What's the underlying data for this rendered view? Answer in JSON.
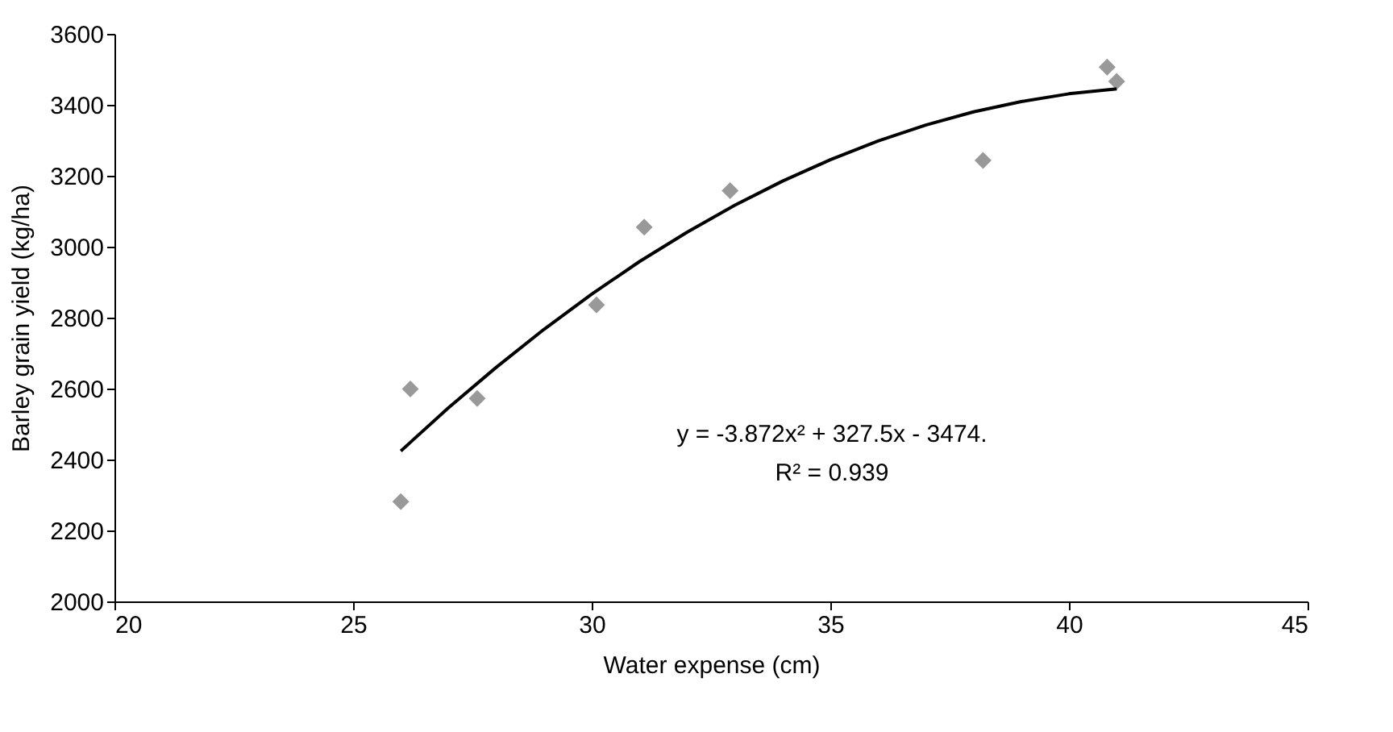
{
  "chart_data": {
    "type": "scatter",
    "xlabel": "Water expense (cm)",
    "ylabel": "Barley grain yield (kg/ha)",
    "xlim": [
      20,
      45
    ],
    "xticks": [
      20,
      25,
      30,
      35,
      40,
      45
    ],
    "ylim": [
      2000,
      3600
    ],
    "yticks": [
      2000,
      2200,
      2400,
      2600,
      2800,
      3000,
      3200,
      3400,
      3600
    ],
    "grid": false,
    "series": [
      {
        "color": "#999999",
        "marker": "diamond",
        "x": [
          26.0,
          26.2,
          27.6,
          30.1,
          31.1,
          32.9,
          38.2,
          40.8,
          41.0
        ],
        "values": [
          2281,
          2599,
          2572,
          2836,
          3055,
          3158,
          3243,
          3506,
          3466
        ]
      },
      {
        "type": "line",
        "color": "#000000",
        "x": [
          26,
          27,
          28,
          29,
          30,
          31,
          32,
          33,
          34,
          35,
          36,
          37,
          38,
          39,
          40,
          41
        ],
        "values": [
          2424,
          2546,
          2660,
          2767,
          2866,
          2958,
          3041,
          3117,
          3185,
          3245,
          3298,
          3343,
          3380,
          3409,
          3431,
          3445
        ]
      }
    ],
    "annotations": [
      "y = -3.872x² + 327.5x - 3474.",
      "R² = 0.939"
    ]
  }
}
